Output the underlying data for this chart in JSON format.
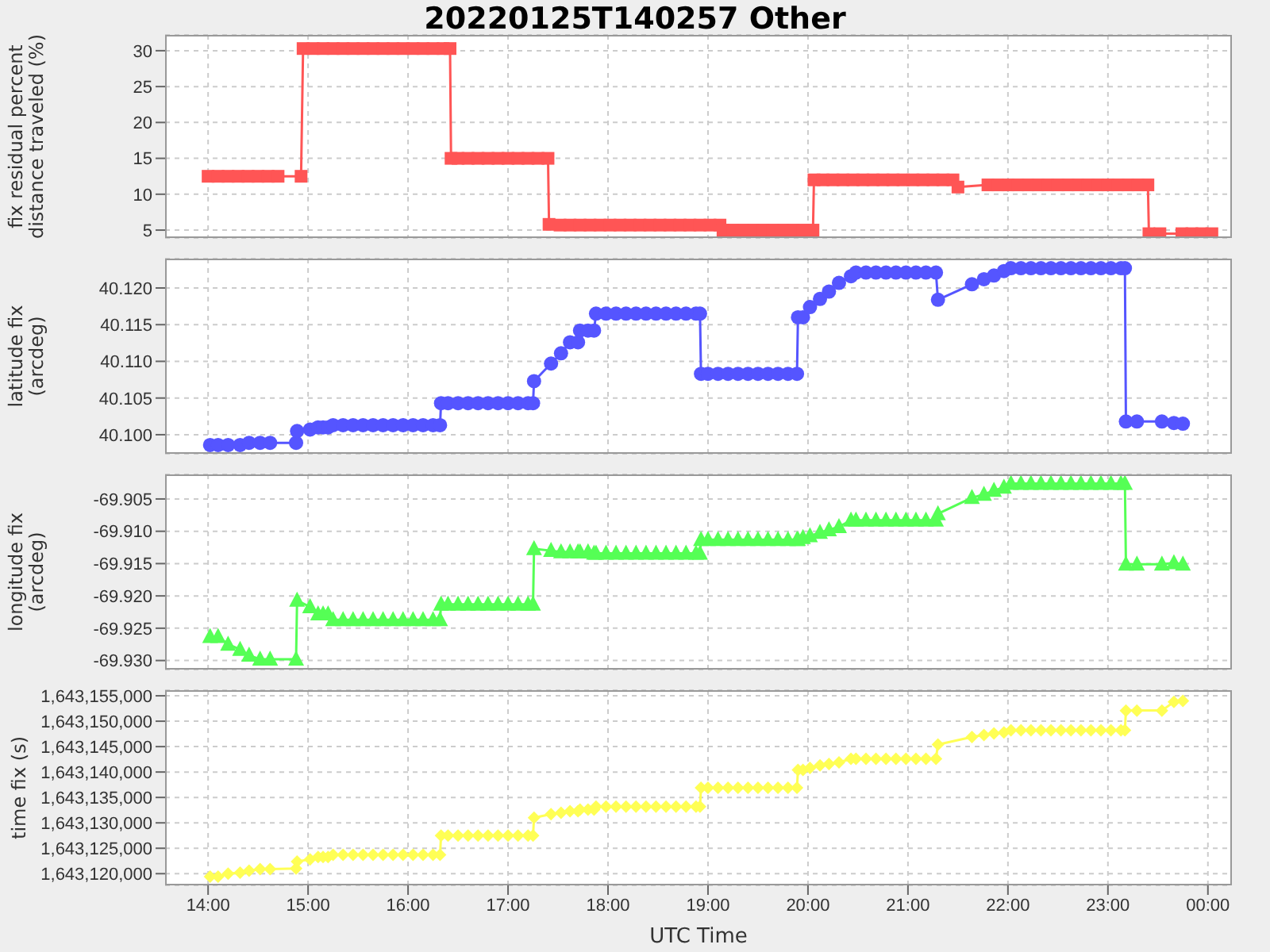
{
  "chart_data": [
    {
      "type": "line",
      "title": "20220125T140257 Other",
      "ylabel": "fix residual percent distance traveled (%)",
      "color": "#ff5555",
      "marker": "square",
      "grid": true,
      "tick_labels": "y",
      "xlim": [
        13.57,
        24.24
      ],
      "xticks": [
        14,
        15,
        16,
        17,
        18,
        19,
        20,
        21,
        22,
        23,
        24
      ],
      "ylim": [
        3.9,
        32.2
      ],
      "yticks": [
        5,
        10,
        15,
        20,
        25,
        30
      ],
      "x": [
        14.0,
        14.1,
        14.2,
        14.3,
        14.4,
        14.5,
        14.6,
        14.7,
        14.93,
        14.95,
        15.05,
        15.15,
        15.25,
        15.35,
        15.45,
        15.55,
        15.65,
        15.75,
        15.85,
        15.95,
        16.05,
        16.15,
        16.25,
        16.35,
        16.42,
        16.43,
        16.5,
        16.6,
        16.7,
        16.8,
        16.9,
        17.0,
        17.1,
        17.2,
        17.3,
        17.4,
        17.41,
        17.52,
        17.62,
        17.72,
        17.82,
        17.92,
        18.02,
        18.12,
        18.22,
        18.32,
        18.42,
        18.52,
        18.62,
        18.72,
        18.82,
        18.92,
        19.02,
        19.12,
        19.15,
        19.25,
        19.35,
        19.45,
        19.55,
        19.65,
        19.75,
        19.85,
        19.95,
        20.05,
        20.06,
        20.15,
        20.25,
        20.35,
        20.45,
        20.55,
        20.65,
        20.75,
        20.85,
        20.95,
        21.05,
        21.15,
        21.25,
        21.35,
        21.45,
        21.5,
        21.8,
        21.9,
        22.0,
        22.1,
        22.2,
        22.3,
        22.4,
        22.5,
        22.6,
        22.7,
        22.8,
        22.9,
        23.0,
        23.1,
        23.2,
        23.3,
        23.4,
        23.41,
        23.52,
        23.74,
        23.84,
        23.94,
        24.04
      ],
      "values": [
        12.5,
        12.5,
        12.5,
        12.5,
        12.5,
        12.5,
        12.5,
        12.5,
        12.5,
        30.3,
        30.3,
        30.3,
        30.3,
        30.3,
        30.3,
        30.3,
        30.3,
        30.3,
        30.3,
        30.3,
        30.3,
        30.3,
        30.3,
        30.3,
        30.3,
        15.0,
        15.0,
        15.0,
        15.0,
        15.0,
        15.0,
        15.0,
        15.0,
        15.0,
        15.0,
        15.0,
        5.8,
        5.7,
        5.7,
        5.7,
        5.7,
        5.7,
        5.7,
        5.7,
        5.7,
        5.7,
        5.7,
        5.7,
        5.7,
        5.7,
        5.7,
        5.7,
        5.7,
        5.7,
        5.0,
        5.0,
        5.0,
        5.0,
        5.0,
        5.0,
        5.0,
        5.0,
        5.0,
        5.0,
        12.0,
        12.0,
        12.0,
        12.0,
        12.0,
        12.0,
        12.0,
        12.0,
        12.0,
        12.0,
        12.0,
        12.0,
        12.0,
        12.0,
        12.0,
        11.0,
        11.3,
        11.3,
        11.3,
        11.3,
        11.3,
        11.3,
        11.3,
        11.3,
        11.3,
        11.3,
        11.3,
        11.3,
        11.3,
        11.3,
        11.3,
        11.3,
        11.3,
        4.5,
        4.5,
        4.5,
        4.5,
        4.5,
        4.5
      ]
    },
    {
      "type": "line",
      "ylabel": "latitude fix (arcdeg)",
      "color": "#5555ff",
      "marker": "circle",
      "grid": true,
      "tick_labels": "y",
      "xlim": [
        13.57,
        24.24
      ],
      "xticks": [
        14,
        15,
        16,
        17,
        18,
        19,
        20,
        21,
        22,
        23,
        24
      ],
      "ylim": [
        40.0974,
        40.124
      ],
      "yticks": [
        {
          "value": 40.1,
          "label": "40.100"
        },
        {
          "value": 40.105,
          "label": "40.105"
        },
        {
          "value": 40.11,
          "label": "40.110"
        },
        {
          "value": 40.115,
          "label": "40.115"
        },
        {
          "value": 40.12,
          "label": "40.120"
        }
      ],
      "x": [
        14.02,
        14.1,
        14.2,
        14.32,
        14.41,
        14.52,
        14.62,
        14.88,
        14.89,
        15.02,
        15.1,
        15.15,
        15.2,
        15.25,
        15.35,
        15.45,
        15.55,
        15.65,
        15.75,
        15.85,
        15.95,
        16.05,
        16.15,
        16.25,
        16.32,
        16.33,
        16.4,
        16.5,
        16.6,
        16.7,
        16.8,
        16.9,
        17.0,
        17.1,
        17.2,
        17.25,
        17.26,
        17.43,
        17.53,
        17.62,
        17.7,
        17.72,
        17.8,
        17.86,
        17.88,
        17.98,
        18.08,
        18.18,
        18.28,
        18.38,
        18.48,
        18.58,
        18.68,
        18.78,
        18.88,
        18.92,
        18.93,
        19.0,
        19.1,
        19.2,
        19.3,
        19.4,
        19.5,
        19.6,
        19.7,
        19.8,
        19.89,
        19.9,
        19.95,
        20.02,
        20.12,
        20.21,
        20.31,
        20.43,
        20.48,
        20.58,
        20.68,
        20.78,
        20.88,
        20.98,
        21.08,
        21.18,
        21.28,
        21.3,
        21.64,
        21.76,
        21.86,
        21.96,
        22.03,
        22.13,
        22.23,
        22.33,
        22.43,
        22.53,
        22.63,
        22.73,
        22.83,
        22.93,
        23.03,
        23.13,
        23.17,
        23.18,
        23.29,
        23.54,
        23.66,
        23.75
      ],
      "values": [
        40.0986,
        40.0986,
        40.0986,
        40.0986,
        40.0989,
        40.0989,
        40.0989,
        40.0989,
        40.1005,
        40.1007,
        40.101,
        40.101,
        40.101,
        40.1013,
        40.1013,
        40.1013,
        40.1013,
        40.1013,
        40.1013,
        40.1013,
        40.1013,
        40.1013,
        40.1013,
        40.1013,
        40.1013,
        40.1043,
        40.1043,
        40.1043,
        40.1043,
        40.1043,
        40.1043,
        40.1043,
        40.1043,
        40.1043,
        40.1043,
        40.1043,
        40.1073,
        40.1097,
        40.1111,
        40.1126,
        40.1126,
        40.1142,
        40.1142,
        40.1142,
        40.1165,
        40.1165,
        40.1165,
        40.1165,
        40.1165,
        40.1165,
        40.1165,
        40.1165,
        40.1165,
        40.1165,
        40.1165,
        40.1165,
        40.1083,
        40.1083,
        40.1083,
        40.1083,
        40.1083,
        40.1083,
        40.1083,
        40.1083,
        40.1083,
        40.1083,
        40.1083,
        40.116,
        40.116,
        40.1174,
        40.1185,
        40.1195,
        40.1207,
        40.1216,
        40.1221,
        40.1221,
        40.1221,
        40.1221,
        40.1221,
        40.1221,
        40.1221,
        40.1221,
        40.1221,
        40.1184,
        40.1205,
        40.1212,
        40.1217,
        40.1223,
        40.1227,
        40.1227,
        40.1227,
        40.1227,
        40.1227,
        40.1227,
        40.1227,
        40.1227,
        40.1227,
        40.1227,
        40.1227,
        40.1227,
        40.1227,
        40.1018,
        40.1018,
        40.1018,
        40.1016,
        40.1015
      ]
    },
    {
      "type": "line",
      "ylabel": "longitude fix (arcdeg)",
      "color": "#55ff55",
      "marker": "triangle",
      "grid": true,
      "tick_labels": "y",
      "xlim": [
        13.57,
        24.24
      ],
      "xticks": [
        14,
        15,
        16,
        17,
        18,
        19,
        20,
        21,
        22,
        23,
        24
      ],
      "ylim": [
        -69.9314,
        -69.9012
      ],
      "yticks": [
        {
          "value": -69.93,
          "label": "-69.930"
        },
        {
          "value": -69.925,
          "label": "-69.925"
        },
        {
          "value": -69.92,
          "label": "-69.920"
        },
        {
          "value": -69.915,
          "label": "-69.915"
        },
        {
          "value": -69.91,
          "label": "-69.910"
        },
        {
          "value": -69.905,
          "label": "-69.905"
        }
      ],
      "x": [
        14.02,
        14.1,
        14.2,
        14.32,
        14.41,
        14.52,
        14.62,
        14.88,
        14.89,
        15.02,
        15.1,
        15.15,
        15.2,
        15.25,
        15.35,
        15.45,
        15.55,
        15.65,
        15.75,
        15.85,
        15.95,
        16.05,
        16.15,
        16.25,
        16.32,
        16.33,
        16.4,
        16.5,
        16.6,
        16.7,
        16.8,
        16.9,
        17.0,
        17.1,
        17.2,
        17.25,
        17.26,
        17.43,
        17.53,
        17.62,
        17.7,
        17.72,
        17.8,
        17.86,
        17.88,
        17.98,
        18.08,
        18.18,
        18.28,
        18.38,
        18.48,
        18.58,
        18.68,
        18.78,
        18.88,
        18.92,
        18.93,
        19.0,
        19.1,
        19.2,
        19.3,
        19.4,
        19.5,
        19.6,
        19.7,
        19.8,
        19.89,
        19.9,
        19.95,
        20.02,
        20.12,
        20.21,
        20.31,
        20.43,
        20.48,
        20.58,
        20.68,
        20.78,
        20.88,
        20.98,
        21.08,
        21.18,
        21.28,
        21.3,
        21.64,
        21.76,
        21.86,
        21.96,
        22.03,
        22.13,
        22.23,
        22.33,
        22.43,
        22.53,
        22.63,
        22.73,
        22.83,
        22.93,
        23.03,
        23.13,
        23.17,
        23.18,
        23.29,
        23.54,
        23.66,
        23.75
      ],
      "values": [
        -69.9263,
        -69.9263,
        -69.9275,
        -69.9283,
        -69.9292,
        -69.9298,
        -69.9298,
        -69.9298,
        -69.9207,
        -69.9217,
        -69.9228,
        -69.9228,
        -69.9228,
        -69.9237,
        -69.9237,
        -69.9237,
        -69.9237,
        -69.9237,
        -69.9237,
        -69.9237,
        -69.9237,
        -69.9237,
        -69.9237,
        -69.9237,
        -69.9237,
        -69.9213,
        -69.9213,
        -69.9213,
        -69.9213,
        -69.9213,
        -69.9213,
        -69.9213,
        -69.9213,
        -69.9213,
        -69.9213,
        -69.9213,
        -69.9127,
        -69.913,
        -69.9132,
        -69.9132,
        -69.9132,
        -69.9132,
        -69.9132,
        -69.9134,
        -69.9134,
        -69.9134,
        -69.9134,
        -69.9134,
        -69.9134,
        -69.9134,
        -69.9134,
        -69.9134,
        -69.9134,
        -69.9134,
        -69.9134,
        -69.9134,
        -69.9113,
        -69.9113,
        -69.9113,
        -69.9113,
        -69.9113,
        -69.9113,
        -69.9113,
        -69.9113,
        -69.9113,
        -69.9113,
        -69.9113,
        -69.9113,
        -69.911,
        -69.9107,
        -69.9102,
        -69.9098,
        -69.9093,
        -69.9083,
        -69.9083,
        -69.9083,
        -69.9083,
        -69.9083,
        -69.9083,
        -69.9083,
        -69.9083,
        -69.9083,
        -69.9083,
        -69.9073,
        -69.9048,
        -69.9043,
        -69.9037,
        -69.9032,
        -69.9026,
        -69.9026,
        -69.9026,
        -69.9026,
        -69.9026,
        -69.9026,
        -69.9026,
        -69.9026,
        -69.9026,
        -69.9026,
        -69.9026,
        -69.9026,
        -69.9026,
        -69.9151,
        -69.9151,
        -69.9151,
        -69.9149,
        -69.9151
      ]
    },
    {
      "type": "line",
      "ylabel": "time fix (s)",
      "xlabel": "UTC Time",
      "color": "#ffff55",
      "marker": "diamond",
      "grid": true,
      "xlim": [
        13.57,
        24.24
      ],
      "xticks": [
        {
          "value": 14,
          "label": "14:00"
        },
        {
          "value": 15,
          "label": "15:00"
        },
        {
          "value": 16,
          "label": "16:00"
        },
        {
          "value": 17,
          "label": "17:00"
        },
        {
          "value": 18,
          "label": "18:00"
        },
        {
          "value": 19,
          "label": "19:00"
        },
        {
          "value": 20,
          "label": "20:00"
        },
        {
          "value": 21,
          "label": "21:00"
        },
        {
          "value": 22,
          "label": "22:00"
        },
        {
          "value": 23,
          "label": "23:00"
        },
        {
          "value": 24,
          "label": "00:00"
        }
      ],
      "ylim": [
        1643117700,
        1643156100
      ],
      "yticks": [
        {
          "value": 1643120000,
          "label": "1,643,120,000"
        },
        {
          "value": 1643125000,
          "label": "1,643,125,000"
        },
        {
          "value": 1643130000,
          "label": "1,643,130,000"
        },
        {
          "value": 1643135000,
          "label": "1,643,135,000"
        },
        {
          "value": 1643140000,
          "label": "1,643,140,000"
        },
        {
          "value": 1643145000,
          "label": "1,643,145,000"
        },
        {
          "value": 1643150000,
          "label": "1,643,150,000"
        },
        {
          "value": 1643155000,
          "label": "1,643,155,000"
        }
      ],
      "x": [
        14.02,
        14.1,
        14.2,
        14.32,
        14.41,
        14.52,
        14.62,
        14.88,
        14.89,
        15.02,
        15.1,
        15.15,
        15.2,
        15.25,
        15.35,
        15.45,
        15.55,
        15.65,
        15.75,
        15.85,
        15.95,
        16.05,
        16.15,
        16.25,
        16.32,
        16.33,
        16.4,
        16.5,
        16.6,
        16.7,
        16.8,
        16.9,
        17.0,
        17.1,
        17.2,
        17.25,
        17.26,
        17.43,
        17.53,
        17.62,
        17.7,
        17.72,
        17.8,
        17.86,
        17.88,
        17.98,
        18.08,
        18.18,
        18.28,
        18.38,
        18.48,
        18.58,
        18.68,
        18.78,
        18.88,
        18.92,
        18.93,
        19.0,
        19.1,
        19.2,
        19.3,
        19.4,
        19.5,
        19.6,
        19.7,
        19.8,
        19.89,
        19.9,
        19.95,
        20.02,
        20.12,
        20.21,
        20.31,
        20.43,
        20.48,
        20.58,
        20.68,
        20.78,
        20.88,
        20.98,
        21.08,
        21.18,
        21.28,
        21.3,
        21.64,
        21.76,
        21.86,
        21.96,
        22.03,
        22.13,
        22.23,
        22.33,
        22.43,
        22.53,
        22.63,
        22.73,
        22.83,
        22.93,
        23.03,
        23.13,
        23.17,
        23.18,
        23.29,
        23.54,
        23.66,
        23.75
      ],
      "values": [
        1643119400,
        1643119400,
        1643120000,
        1643120200,
        1643120600,
        1643120900,
        1643120900,
        1643121000,
        1643122400,
        1643122800,
        1643123300,
        1643123300,
        1643123300,
        1643123700,
        1643123700,
        1643123700,
        1643123700,
        1643123700,
        1643123700,
        1643123700,
        1643123700,
        1643123700,
        1643123700,
        1643123700,
        1643123700,
        1643127500,
        1643127500,
        1643127500,
        1643127500,
        1643127500,
        1643127500,
        1643127500,
        1643127500,
        1643127500,
        1643127500,
        1643127500,
        1643131000,
        1643131700,
        1643132000,
        1643132300,
        1643132300,
        1643132600,
        1643132600,
        1643132600,
        1643133200,
        1643133200,
        1643133200,
        1643133200,
        1643133200,
        1643133200,
        1643133200,
        1643133200,
        1643133200,
        1643133200,
        1643133200,
        1643133200,
        1643136900,
        1643136900,
        1643136900,
        1643136900,
        1643136900,
        1643136900,
        1643136900,
        1643136900,
        1643136900,
        1643136900,
        1643136900,
        1643140400,
        1643140400,
        1643140800,
        1643141300,
        1643141600,
        1643141900,
        1643142600,
        1643142600,
        1643142600,
        1643142600,
        1643142600,
        1643142600,
        1643142600,
        1643142600,
        1643142600,
        1643142600,
        1643145400,
        1643146900,
        1643147300,
        1643147600,
        1643147800,
        1643148200,
        1643148200,
        1643148200,
        1643148200,
        1643148200,
        1643148200,
        1643148200,
        1643148200,
        1643148200,
        1643148200,
        1643148200,
        1643148200,
        1643148200,
        1643152100,
        1643152100,
        1643152100,
        1643153800,
        1643154000
      ]
    }
  ]
}
